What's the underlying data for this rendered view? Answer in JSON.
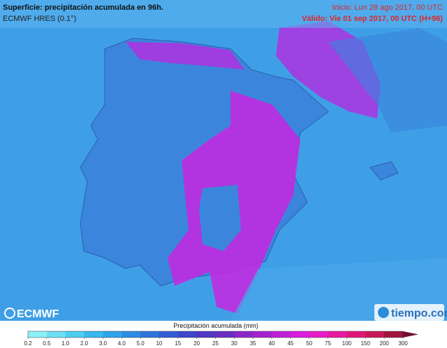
{
  "header": {
    "title": "Superficie: precipitación acumulada en 96h.",
    "model": "ECMWF HRES (0.1°)",
    "init": "Inicio: Lun 28 ago 2017, 00 UTC",
    "valid": "Válido: Vie 01 sep 2017, 00 UTC (H+96)"
  },
  "logos": {
    "left": "ECMWF",
    "right": "tiempo.com"
  },
  "colorbar": {
    "label": "Precipitación acumulada (mm)",
    "ticks": [
      "0.2",
      "0.5",
      "1.0",
      "2.0",
      "3.0",
      "4.0",
      "5.0",
      "10",
      "15",
      "20",
      "25",
      "30",
      "35",
      "40",
      "45",
      "50",
      "75",
      "100",
      "150",
      "200",
      "300"
    ],
    "colors": [
      "#8ef0f7",
      "#6ee0f4",
      "#4ccdf0",
      "#38b8ee",
      "#2fa3ea",
      "#2c8ce4",
      "#2e74dc",
      "#345cd4",
      "#3e46cc",
      "#5038c4",
      "#6a2ec0",
      "#8a28c8",
      "#a622d0",
      "#c020d8",
      "#d81ee0",
      "#e81cc8",
      "#e81aa0",
      "#e0187a",
      "#c81858",
      "#a01440"
    ],
    "over_color": "#701030"
  }
}
